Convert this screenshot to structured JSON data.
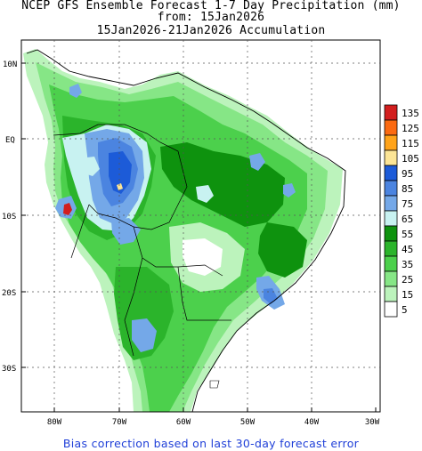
{
  "title": {
    "line1": "NCEP GFS Ensemble Forecast 1-7 Day Precipitation (mm)",
    "line2": "from: 15Jan2026",
    "line3": "15Jan2026-21Jan2026 Accumulation"
  },
  "axes": {
    "lat_labels": [
      "10N",
      "EQ",
      "10S",
      "20S",
      "30S"
    ],
    "lon_labels": [
      "80W",
      "70W",
      "60W",
      "50W",
      "40W",
      "30W"
    ]
  },
  "legend": {
    "levels": [
      "135",
      "125",
      "115",
      "105",
      "95",
      "85",
      "75",
      "65",
      "55",
      "45",
      "35",
      "25",
      "15",
      "5"
    ],
    "colors": [
      "#d21e1e",
      "#fb6a11",
      "#ffa319",
      "#fce596",
      "#1c5bd8",
      "#4b84e0",
      "#74a8e8",
      "#c8f2f1",
      "#0e920e",
      "#2bb42b",
      "#4cd04c",
      "#86e686",
      "#bcf3bc",
      "#ffffff"
    ]
  },
  "footer": "Bias correction based on last 30-day forecast error"
}
